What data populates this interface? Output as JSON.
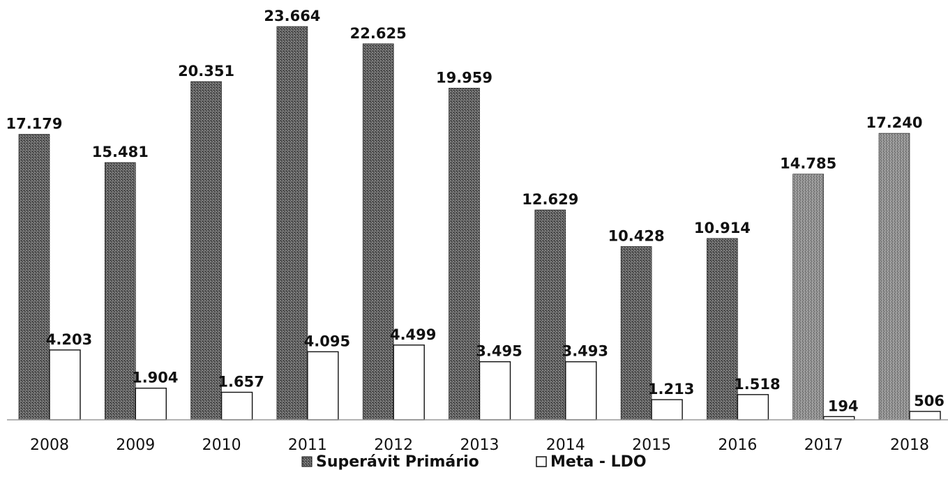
{
  "chart_data": {
    "type": "bar",
    "title": "",
    "xlabel": "",
    "ylabel": "",
    "categories": [
      "2008",
      "2009",
      "2010",
      "2011",
      "2012",
      "2013",
      "2014",
      "2015",
      "2016",
      "2017",
      "2018"
    ],
    "series": [
      {
        "name": "Superávit Primário",
        "values": [
          17179,
          15481,
          20351,
          23664,
          22625,
          19959,
          12629,
          10428,
          10914,
          14785,
          17240
        ],
        "labels": [
          "17.179",
          "15.481",
          "20.351",
          "23.664",
          "22.625",
          "19.959",
          "12.629",
          "10.428",
          "10.914",
          "14.785",
          "17.240"
        ],
        "color": "#5a5a5a"
      },
      {
        "name": "Meta - LDO",
        "values": [
          4203,
          1904,
          1657,
          4095,
          4499,
          3495,
          3493,
          1213,
          1518,
          194,
          506
        ],
        "labels": [
          "4.203",
          "1.904",
          "1.657",
          "4.095",
          "4.499",
          "3.495",
          "3.493",
          "1.213",
          "1.518",
          "194",
          "506"
        ],
        "color": "#ffffff"
      }
    ],
    "ylim": [
      0,
      24000
    ],
    "grid": false,
    "legend_position": "bottom"
  }
}
